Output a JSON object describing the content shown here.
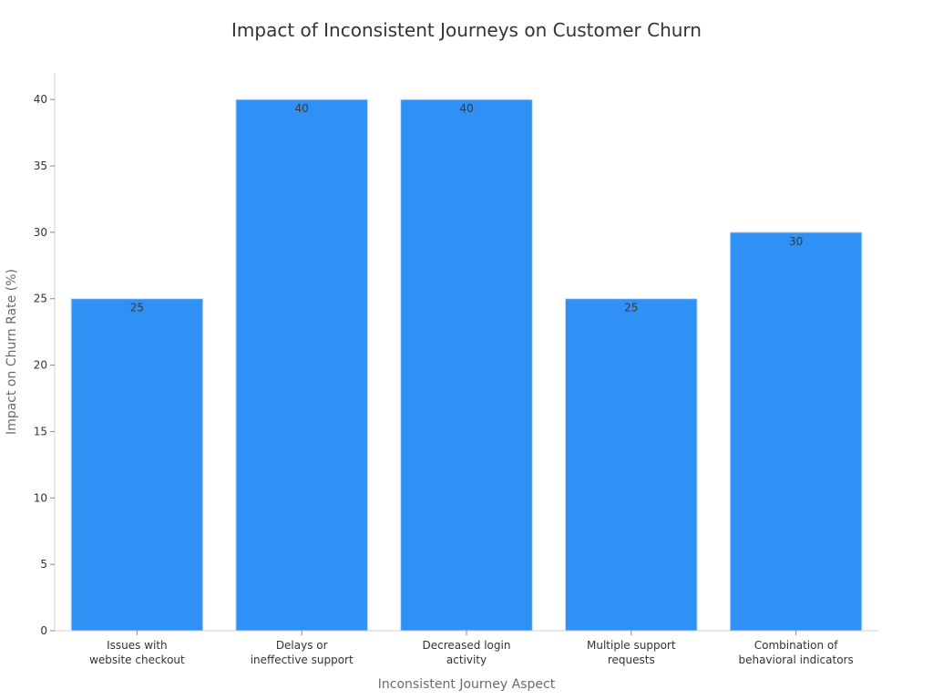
{
  "chart_data": {
    "type": "bar",
    "title": "Impact of Inconsistent Journeys on Customer Churn",
    "xlabel": "Inconsistent Journey Aspect",
    "ylabel": "Impact on Churn Rate (%)",
    "categories": [
      [
        "Issues with",
        "website checkout"
      ],
      [
        "Delays or",
        "ineffective support"
      ],
      [
        "Decreased login",
        "activity"
      ],
      [
        "Multiple support",
        "requests"
      ],
      [
        "Combination of",
        "behavioral indicators"
      ]
    ],
    "values": [
      25,
      40,
      40,
      25,
      30
    ],
    "data_labels": [
      "25",
      "40",
      "40",
      "25",
      "30"
    ],
    "ylim": [
      0,
      42
    ],
    "yticks": [
      0,
      5,
      10,
      15,
      20,
      25,
      30,
      35,
      40
    ],
    "grid": false,
    "legend": "none",
    "bar_color": "#2f90f5"
  }
}
